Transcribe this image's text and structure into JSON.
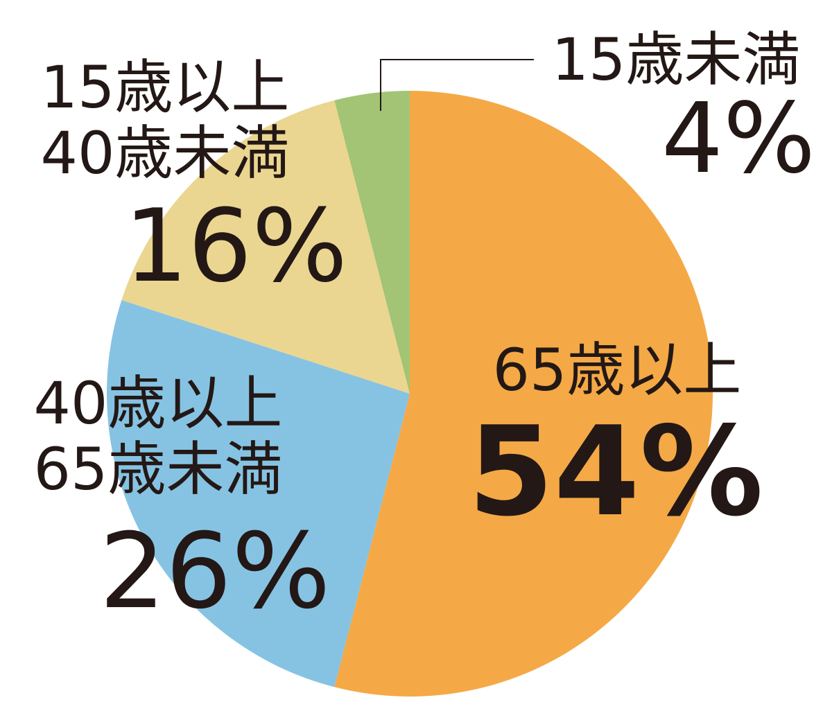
{
  "chart_data": {
    "type": "pie",
    "start_angle_deg": 0,
    "direction": "clockwise",
    "slices": [
      {
        "category_line1": "65歳以上",
        "category_line2": "",
        "percent_label": "54%",
        "value": 54,
        "color": "#F4A946"
      },
      {
        "category_line1": "40歳以上",
        "category_line2": "65歳未満",
        "percent_label": "26%",
        "value": 26,
        "color": "#86C3E3"
      },
      {
        "category_line1": "15歳以上",
        "category_line2": "40歳未満",
        "percent_label": "16%",
        "value": 16,
        "color": "#EAD690"
      },
      {
        "category_line1": "15歳未満",
        "category_line2": "",
        "percent_label": "4%",
        "value": 4,
        "color": "#A2C474"
      }
    ],
    "text_color": "#231815"
  }
}
